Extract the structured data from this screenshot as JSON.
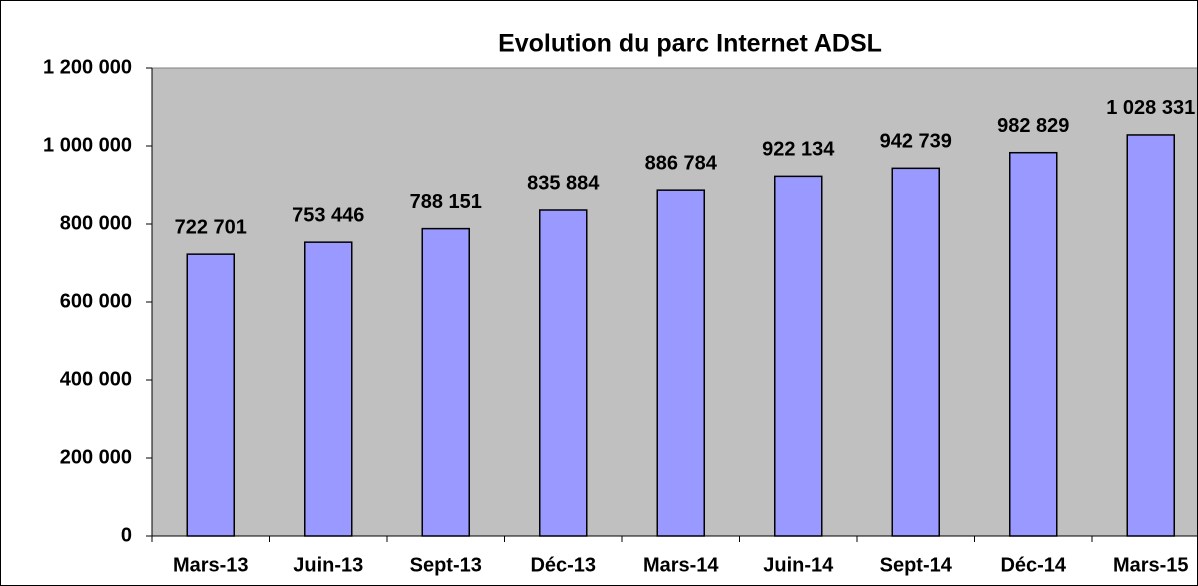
{
  "chart_data": {
    "type": "bar",
    "title": "Evolution du parc Internet ADSL",
    "categories": [
      "Mars-13",
      "Juin-13",
      "Sept-13",
      "Déc-13",
      "Mars-14",
      "Juin-14",
      "Sept-14",
      "Déc-14",
      "Mars-15"
    ],
    "values": [
      722701,
      753446,
      788151,
      835884,
      886784,
      922134,
      942739,
      982829,
      1028331
    ],
    "value_labels": [
      "722 701",
      "753 446",
      "788 151",
      "835 884",
      "886 784",
      "922 134",
      "942 739",
      "982 829",
      "1 028 331"
    ],
    "color": "#9999ff",
    "ylim": [
      0,
      1200000
    ],
    "yticks": [
      0,
      {
        "value": 200000,
        "label": "200 000"
      },
      {
        "value": 400000,
        "label": "400 000"
      },
      {
        "value": 600000,
        "label": "600 000"
      },
      {
        "value": 800000,
        "label": "800 000"
      },
      {
        "value": 1000000,
        "label": "1 000 000"
      },
      {
        "value": 1200000,
        "label": "1 200 000"
      }
    ],
    "grid": false
  }
}
